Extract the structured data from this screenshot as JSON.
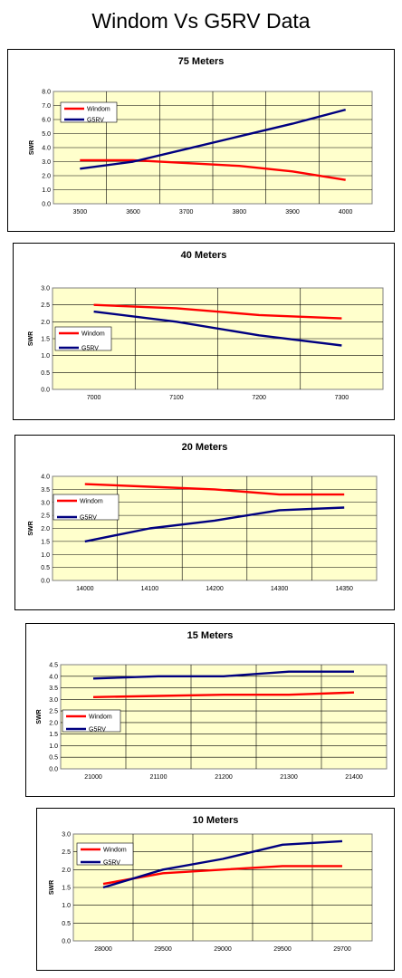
{
  "page": {
    "title": "Windom Vs G5RV Data"
  },
  "colors": {
    "windom": "#ff0000",
    "g5rv": "#000080",
    "plot_bg": "#ffffcc",
    "grid": "#000000"
  },
  "chart_data": [
    {
      "type": "line",
      "title": "75 Meters",
      "ylabel": "SWR",
      "categories": [
        "3500",
        "3600",
        "3700",
        "3800",
        "3900",
        "4000"
      ],
      "yticks": [
        "0.0",
        "1.0",
        "2.0",
        "3.0",
        "4.0",
        "5.0",
        "6.0",
        "7.0",
        "8.0"
      ],
      "ylim": [
        0,
        8
      ],
      "grid": true,
      "legend": "top-left",
      "series": [
        {
          "name": "Windom",
          "color": "#ff0000",
          "values": [
            3.1,
            3.1,
            2.9,
            2.7,
            2.3,
            1.7
          ]
        },
        {
          "name": "G5RV",
          "color": "#000080",
          "values": [
            2.5,
            3.0,
            3.9,
            4.8,
            5.7,
            6.7
          ]
        }
      ]
    },
    {
      "type": "line",
      "title": "40 Meters",
      "ylabel": "SWR",
      "categories": [
        "7000",
        "7100",
        "7200",
        "7300"
      ],
      "yticks": [
        "0.0",
        "0.5",
        "1.0",
        "1.5",
        "2.0",
        "2.5",
        "3.0"
      ],
      "ylim": [
        0,
        3
      ],
      "grid": true,
      "legend": "bottom-left",
      "series": [
        {
          "name": "Windom",
          "color": "#ff0000",
          "values": [
            2.5,
            2.4,
            2.2,
            2.1
          ]
        },
        {
          "name": "G5RV",
          "color": "#000080",
          "values": [
            2.3,
            2.0,
            1.6,
            1.3
          ]
        }
      ]
    },
    {
      "type": "line",
      "title": "20 Meters",
      "ylabel": "SWR",
      "categories": [
        "14000",
        "14100",
        "14200",
        "14300",
        "14350"
      ],
      "yticks": [
        "0.0",
        "0.5",
        "1.0",
        "1.5",
        "2.0",
        "2.5",
        "3.0",
        "3.5",
        "4.0"
      ],
      "ylim": [
        0,
        4
      ],
      "grid": true,
      "legend": "top-left",
      "series": [
        {
          "name": "Windom",
          "color": "#ff0000",
          "values": [
            3.7,
            3.6,
            3.5,
            3.3,
            3.3
          ]
        },
        {
          "name": "G5RV",
          "color": "#000080",
          "values": [
            1.5,
            2.0,
            2.3,
            2.7,
            2.8
          ]
        }
      ]
    },
    {
      "type": "line",
      "title": "15 Meters",
      "ylabel": "SWR",
      "categories": [
        "21000",
        "21100",
        "21200",
        "21300",
        "21400"
      ],
      "yticks": [
        "0.0",
        "0.5",
        "1.0",
        "1.5",
        "2.0",
        "2.5",
        "3.0",
        "3.5",
        "4.0",
        "4.5"
      ],
      "ylim": [
        0,
        4.5
      ],
      "grid": true,
      "legend": "center-left",
      "series": [
        {
          "name": "Windom",
          "color": "#ff0000",
          "values": [
            3.1,
            3.15,
            3.2,
            3.2,
            3.3
          ]
        },
        {
          "name": "G5RV",
          "color": "#000080",
          "values": [
            3.9,
            4.0,
            4.0,
            4.2,
            4.2
          ]
        }
      ]
    },
    {
      "type": "line",
      "title": "10 Meters",
      "ylabel": "SWR",
      "categories": [
        "28000",
        "29500",
        "29000",
        "29500",
        "29700"
      ],
      "yticks": [
        "0.0",
        "0.5",
        "1.0",
        "1.5",
        "2.0",
        "2.5",
        "3.0"
      ],
      "ylim": [
        0,
        3
      ],
      "grid": true,
      "legend": "top-left",
      "series": [
        {
          "name": "Windom",
          "color": "#ff0000",
          "values": [
            1.6,
            1.9,
            2.0,
            2.1,
            2.1
          ]
        },
        {
          "name": "G5RV",
          "color": "#000080",
          "values": [
            1.5,
            2.0,
            2.3,
            2.7,
            2.8
          ]
        }
      ]
    }
  ]
}
